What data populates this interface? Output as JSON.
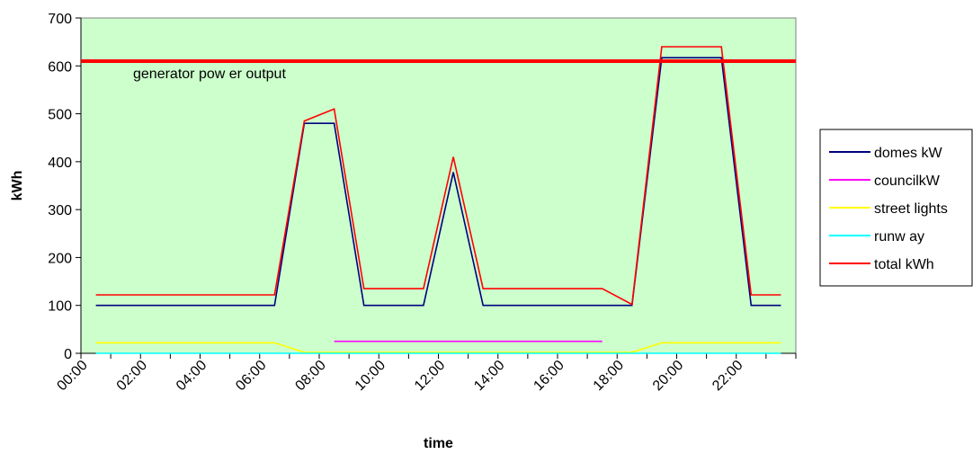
{
  "chart_data": {
    "type": "line",
    "title": "",
    "xlabel": "time",
    "ylabel": "kWh",
    "ylim": [
      0,
      700
    ],
    "yticks": [
      "0",
      "100",
      "200",
      "300",
      "400",
      "500",
      "600",
      "700"
    ],
    "xlim": [
      "00:00",
      "24:00"
    ],
    "xticks": [
      "00:00",
      "02:00",
      "04:00",
      "06:00",
      "08:00",
      "10:00",
      "12:00",
      "14:00",
      "16:00",
      "18:00",
      "20:00",
      "22:00"
    ],
    "grid": false,
    "plot_background": "#ccffcc",
    "legend_position": "right",
    "series": [
      {
        "name": "domes kW",
        "color": "#000080",
        "points": [
          [
            "00:30",
            100
          ],
          [
            "06:30",
            100
          ],
          [
            "07:30",
            480
          ],
          [
            "08:30",
            480
          ],
          [
            "09:30",
            100
          ],
          [
            "11:30",
            100
          ],
          [
            "12:30",
            378
          ],
          [
            "13:30",
            100
          ],
          [
            "18:30",
            100
          ],
          [
            "19:30",
            617
          ],
          [
            "21:30",
            617
          ],
          [
            "22:30",
            100
          ],
          [
            "23:30",
            100
          ]
        ]
      },
      {
        "name": "councilkW",
        "color": "#ff00ff",
        "points": [
          [
            "08:30",
            25
          ],
          [
            "17:30",
            25
          ]
        ]
      },
      {
        "name": "street lights",
        "color": "#ffff00",
        "points": [
          [
            "00:30",
            22
          ],
          [
            "06:30",
            22
          ],
          [
            "07:30",
            2
          ],
          [
            "18:30",
            2
          ],
          [
            "19:30",
            22
          ],
          [
            "23:30",
            22
          ]
        ]
      },
      {
        "name": "runw ay",
        "color": "#00ffff",
        "points": [
          [
            "00:30",
            0
          ],
          [
            "23:30",
            0
          ]
        ]
      },
      {
        "name": "total kWh",
        "color": "#ff0000",
        "points": [
          [
            "00:30",
            122
          ],
          [
            "06:30",
            122
          ],
          [
            "07:30",
            485
          ],
          [
            "08:30",
            510
          ],
          [
            "09:30",
            135
          ],
          [
            "11:30",
            135
          ],
          [
            "12:30",
            410
          ],
          [
            "13:30",
            135
          ],
          [
            "17:30",
            135
          ],
          [
            "18:30",
            102
          ],
          [
            "19:30",
            640
          ],
          [
            "21:30",
            640
          ],
          [
            "22:30",
            122
          ],
          [
            "23:30",
            122
          ]
        ]
      }
    ],
    "reference_lines": [
      {
        "label": "generator pow er output",
        "y": 610,
        "color": "#ff0000"
      }
    ]
  }
}
